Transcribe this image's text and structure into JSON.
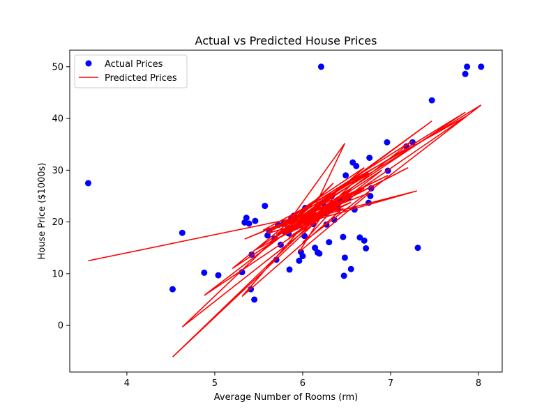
{
  "chart_data": {
    "type": "scatter",
    "title": "Actual vs Predicted House Prices",
    "xlabel": "Average Number of Rooms (rm)",
    "ylabel": "House Price ($1000s)",
    "xlim": [
      3.35,
      8.27
    ],
    "ylim": [
      -9.0,
      53.2
    ],
    "xticks": [
      4,
      5,
      6,
      7,
      8
    ],
    "yticks": [
      0,
      10,
      20,
      30,
      40,
      50
    ],
    "grid": false,
    "legend_placement": "top-left",
    "colors": {
      "actual": "#0000ff",
      "predicted": "#ff0000"
    },
    "series": [
      {
        "name": "Actual Prices",
        "kind": "scatter",
        "points": [
          [
            3.56,
            27.5
          ],
          [
            4.52,
            7.0
          ],
          [
            4.63,
            17.9
          ],
          [
            4.88,
            10.2
          ],
          [
            5.04,
            9.7
          ],
          [
            5.31,
            10.3
          ],
          [
            5.34,
            19.9
          ],
          [
            5.36,
            20.8
          ],
          [
            5.39,
            19.7
          ],
          [
            5.41,
            7.0
          ],
          [
            5.42,
            13.7
          ],
          [
            5.45,
            5.0
          ],
          [
            5.46,
            20.2
          ],
          [
            5.57,
            23.1
          ],
          [
            5.6,
            17.4
          ],
          [
            5.62,
            18.3
          ],
          [
            5.68,
            16.8
          ],
          [
            5.7,
            12.7
          ],
          [
            5.72,
            19.4
          ],
          [
            5.75,
            15.6
          ],
          [
            5.78,
            19.6
          ],
          [
            5.8,
            18.1
          ],
          [
            5.84,
            17.8
          ],
          [
            5.85,
            10.8
          ],
          [
            5.87,
            20.6
          ],
          [
            5.9,
            21.2
          ],
          [
            5.93,
            19.1
          ],
          [
            5.96,
            12.5
          ],
          [
            5.98,
            14.2
          ],
          [
            6.0,
            13.4
          ],
          [
            6.02,
            17.3
          ],
          [
            6.03,
            22.7
          ],
          [
            6.06,
            20.2
          ],
          [
            6.09,
            21.4
          ],
          [
            6.12,
            19.6
          ],
          [
            6.14,
            15.0
          ],
          [
            6.17,
            14.1
          ],
          [
            6.19,
            13.9
          ],
          [
            6.21,
            50.0
          ],
          [
            6.23,
            23.7
          ],
          [
            6.25,
            21.7
          ],
          [
            6.27,
            19.5
          ],
          [
            6.3,
            16.1
          ],
          [
            6.33,
            25.0
          ],
          [
            6.36,
            20.4
          ],
          [
            6.4,
            22.8
          ],
          [
            6.43,
            24.1
          ],
          [
            6.46,
            17.1
          ],
          [
            6.47,
            9.6
          ],
          [
            6.48,
            13.1
          ],
          [
            6.49,
            29.0
          ],
          [
            6.52,
            24.6
          ],
          [
            6.55,
            10.9
          ],
          [
            6.57,
            31.5
          ],
          [
            6.59,
            22.4
          ],
          [
            6.61,
            30.8
          ],
          [
            6.65,
            17.0
          ],
          [
            6.7,
            16.4
          ],
          [
            6.72,
            14.9
          ],
          [
            6.75,
            23.7
          ],
          [
            6.76,
            32.4
          ],
          [
            6.77,
            25.0
          ],
          [
            6.78,
            26.5
          ],
          [
            6.96,
            35.4
          ],
          [
            6.97,
            29.9
          ],
          [
            7.18,
            34.6
          ],
          [
            7.25,
            35.4
          ],
          [
            7.31,
            15.0
          ],
          [
            7.47,
            43.5
          ],
          [
            7.85,
            48.6
          ],
          [
            7.87,
            50.0
          ],
          [
            8.03,
            50.0
          ]
        ]
      },
      {
        "name": "Predicted Prices",
        "kind": "line",
        "points": [
          [
            3.56,
            12.5
          ],
          [
            5.9,
            20.7
          ],
          [
            5.34,
            16.7
          ],
          [
            6.4,
            24.0
          ],
          [
            4.52,
            -6.1
          ],
          [
            6.6,
            28.0
          ],
          [
            5.55,
            18.4
          ],
          [
            7.3,
            26.0
          ],
          [
            5.6,
            17.8
          ],
          [
            6.1,
            23.5
          ],
          [
            5.2,
            11.0
          ],
          [
            6.9,
            30.0
          ],
          [
            4.63,
            -0.3
          ],
          [
            6.35,
            27.5
          ],
          [
            5.8,
            18.2
          ],
          [
            6.2,
            23.0
          ],
          [
            4.88,
            5.8
          ],
          [
            6.7,
            26.5
          ],
          [
            5.7,
            17.6
          ],
          [
            7.47,
            39.5
          ],
          [
            5.98,
            20.8
          ],
          [
            6.45,
            22.5
          ],
          [
            5.31,
            5.6
          ],
          [
            6.3,
            25.0
          ],
          [
            5.62,
            16.0
          ],
          [
            6.55,
            23.8
          ],
          [
            5.9,
            19.2
          ],
          [
            7.2,
            30.5
          ],
          [
            5.75,
            17.7
          ],
          [
            6.25,
            21.6
          ],
          [
            5.45,
            14.5
          ],
          [
            6.75,
            29.5
          ],
          [
            6.0,
            22.0
          ],
          [
            5.8,
            19.1
          ],
          [
            6.48,
            35.2
          ],
          [
            6.05,
            19.8
          ],
          [
            6.1,
            21.0
          ],
          [
            5.87,
            21.1
          ],
          [
            6.7,
            30.5
          ],
          [
            6.17,
            22.6
          ],
          [
            5.8,
            19.6
          ],
          [
            6.33,
            24.3
          ],
          [
            5.96,
            14.2
          ],
          [
            6.76,
            25.6
          ],
          [
            5.7,
            18.8
          ],
          [
            7.85,
            41.2
          ],
          [
            6.23,
            22.9
          ],
          [
            5.6,
            18.0
          ],
          [
            7.25,
            35.7
          ],
          [
            6.14,
            21.0
          ],
          [
            6.55,
            26.2
          ],
          [
            6.0,
            16.0
          ],
          [
            8.03,
            42.6
          ],
          [
            6.21,
            23.6
          ],
          [
            5.93,
            19.0
          ],
          [
            6.61,
            25.8
          ],
          [
            6.36,
            23.2
          ],
          [
            5.78,
            17.5
          ],
          [
            6.43,
            26.8
          ],
          [
            7.87,
            40.5
          ],
          [
            6.3,
            22.2
          ],
          [
            6.03,
            21.4
          ],
          [
            6.97,
            29.0
          ],
          [
            6.12,
            21.9
          ],
          [
            6.57,
            24.9
          ],
          [
            5.84,
            17.0
          ],
          [
            6.27,
            21.9
          ],
          [
            6.52,
            25.2
          ]
        ]
      }
    ]
  }
}
